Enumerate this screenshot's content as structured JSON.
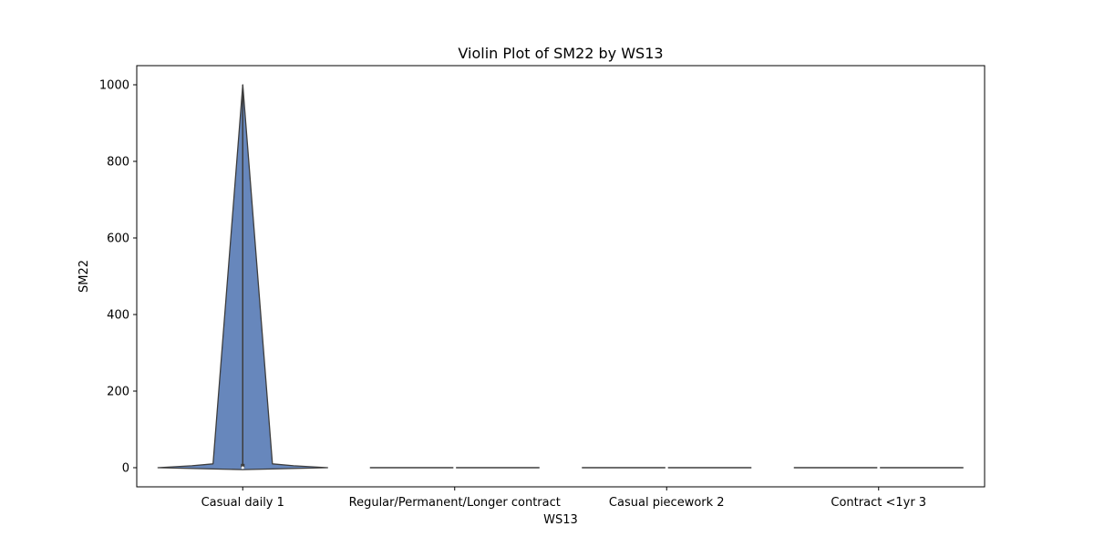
{
  "chart_data": {
    "type": "violin",
    "title": "Violin Plot of SM22 by WS13",
    "xlabel": "WS13",
    "ylabel": "SM22",
    "categories": [
      "Casual daily 1",
      "Regular/Permanent/Longer contract",
      "Casual piecework 2",
      "Contract <1yr 3"
    ],
    "ylim": [
      -50,
      1050
    ],
    "yticks": [
      0,
      200,
      400,
      600,
      800,
      1000
    ],
    "grid": false,
    "colors": {
      "violin_fill": "#4c72b0",
      "violin_edge": "#3d3d3d",
      "spine": "#000000"
    },
    "violins": [
      {
        "category": "Casual daily 1",
        "min": 0,
        "max": 1000,
        "q1": 0,
        "median": 0,
        "q3": 10,
        "profile": [
          [
            -5,
            0.0
          ],
          [
            0,
            1.0
          ],
          [
            5,
            0.6
          ],
          [
            10,
            0.35
          ],
          [
            1000,
            0.0
          ]
        ]
      },
      {
        "category": "Regular/Permanent/Longer contract",
        "min": 0,
        "max": 0,
        "q1": 0,
        "median": 0,
        "q3": 0,
        "profile": [
          [
            0,
            1.0
          ]
        ]
      },
      {
        "category": "Casual piecework 2",
        "min": 0,
        "max": 0,
        "q1": 0,
        "median": 0,
        "q3": 0,
        "profile": [
          [
            0,
            1.0
          ]
        ]
      },
      {
        "category": "Contract <1yr 3",
        "min": 0,
        "max": 0,
        "q1": 0,
        "median": 0,
        "q3": 0,
        "profile": [
          [
            0,
            1.0
          ]
        ]
      }
    ]
  }
}
